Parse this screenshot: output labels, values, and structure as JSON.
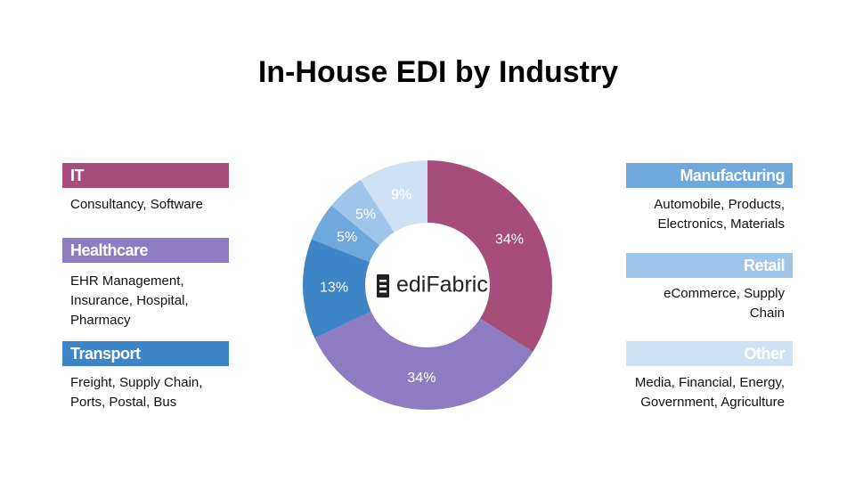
{
  "chart_data": {
    "type": "donut",
    "title": "In-House EDI by Industry",
    "center_label": "ediFabric",
    "categories": [
      "IT",
      "Healthcare",
      "Transport",
      "Manufacturing",
      "Retail",
      "Other"
    ],
    "descriptions": [
      "Consultancy, Software",
      "EHR Management, Insurance, Hospital, Pharmacy",
      "Freight, Supply Chain, Ports, Postal, Bus",
      "Automobile, Products, Electronics, Materials",
      "eCommerce, Supply Chain",
      "Media, Financial, Energy, Government, Agriculture"
    ],
    "values": [
      34,
      34,
      13,
      5,
      5,
      9
    ],
    "value_labels": [
      "34%",
      "34%",
      "13%",
      "5%",
      "5%",
      "9%"
    ],
    "colors": [
      "#a64d79",
      "#8e7cc3",
      "#3d85c6",
      "#6fa8dc",
      "#9fc5e8",
      "#cfe2f3"
    ]
  }
}
